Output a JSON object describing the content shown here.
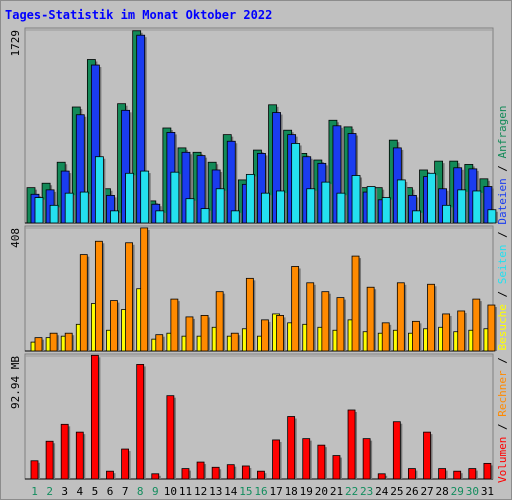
{
  "title": "Tages-Statistik im Monat Oktober 2022",
  "colors": {
    "background": "#c0c0c0",
    "weekday_label": "#000000",
    "weekend_label": "#138d5e",
    "anfragen": "#138a58",
    "dateien": "#1a3cf0",
    "seiten": "#24e0ef",
    "besuche": "#ffff00",
    "rechner": "#ff8a00",
    "volumen": "#ff0000"
  },
  "chart_data": [
    {
      "type": "bar",
      "panel": "hits",
      "y_max_label": "1729",
      "ylim": [
        0,
        1729
      ],
      "categories": [
        "1",
        "2",
        "3",
        "4",
        "5",
        "6",
        "7",
        "8",
        "9",
        "10",
        "11",
        "12",
        "13",
        "14",
        "15",
        "16",
        "17",
        "18",
        "19",
        "20",
        "21",
        "22",
        "23",
        "24",
        "25",
        "26",
        "27",
        "28",
        "29",
        "30",
        "31"
      ],
      "weekend": [
        "1",
        "2",
        "8",
        "9",
        "15",
        "16",
        "22",
        "23",
        "29",
        "30"
      ],
      "series": [
        {
          "name": "Anfragen",
          "values": [
            320,
            360,
            550,
            1050,
            1480,
            310,
            1080,
            1740,
            200,
            860,
            680,
            640,
            550,
            800,
            390,
            660,
            1070,
            840,
            630,
            570,
            930,
            870,
            320,
            320,
            750,
            320,
            480,
            560,
            560,
            530,
            400
          ]
        },
        {
          "name": "Dateien",
          "values": [
            260,
            300,
            470,
            980,
            1430,
            250,
            1020,
            1700,
            170,
            820,
            640,
            610,
            480,
            740,
            350,
            630,
            1000,
            800,
            600,
            540,
            880,
            810,
            280,
            210,
            680,
            250,
            420,
            310,
            500,
            490,
            330
          ]
        },
        {
          "name": "Seiten",
          "values": [
            230,
            160,
            270,
            280,
            600,
            110,
            450,
            470,
            110,
            460,
            220,
            130,
            310,
            110,
            440,
            270,
            290,
            720,
            310,
            370,
            270,
            430,
            330,
            230,
            390,
            110,
            450,
            160,
            300,
            290,
            120
          ]
        }
      ]
    },
    {
      "type": "bar",
      "panel": "visits",
      "y_max_label": "408",
      "ylim": [
        0,
        408
      ],
      "categories": [
        "1",
        "2",
        "3",
        "4",
        "5",
        "6",
        "7",
        "8",
        "9",
        "10",
        "11",
        "12",
        "13",
        "14",
        "15",
        "16",
        "17",
        "18",
        "19",
        "20",
        "21",
        "22",
        "23",
        "24",
        "25",
        "26",
        "27",
        "28",
        "29",
        "30",
        "31"
      ],
      "series": [
        {
          "name": "Besuche",
          "values": [
            30,
            45,
            50,
            90,
            160,
            70,
            140,
            210,
            40,
            60,
            50,
            50,
            80,
            50,
            75,
            50,
            125,
            95,
            90,
            80,
            70,
            105,
            65,
            60,
            70,
            60,
            75,
            80,
            65,
            70,
            75
          ]
        },
        {
          "name": "Rechner",
          "values": [
            45,
            60,
            60,
            325,
            370,
            170,
            365,
            415,
            55,
            175,
            115,
            120,
            200,
            60,
            245,
            105,
            120,
            285,
            230,
            200,
            180,
            320,
            215,
            95,
            230,
            100,
            225,
            125,
            135,
            175,
            155
          ]
        }
      ]
    },
    {
      "type": "bar",
      "panel": "volume",
      "y_max_label": "92.94 MB",
      "ylim": [
        0,
        92.94
      ],
      "categories": [
        "1",
        "2",
        "3",
        "4",
        "5",
        "6",
        "7",
        "8",
        "9",
        "10",
        "11",
        "12",
        "13",
        "14",
        "15",
        "16",
        "17",
        "18",
        "19",
        "20",
        "21",
        "22",
        "23",
        "24",
        "25",
        "26",
        "27",
        "28",
        "29",
        "30",
        "31"
      ],
      "series": [
        {
          "name": "Volumen",
          "values": [
            14,
            29,
            42,
            36,
            95,
            6,
            23,
            88,
            4,
            64,
            8,
            13,
            9,
            11,
            10,
            6,
            30,
            48,
            31,
            26,
            18,
            53,
            31,
            4,
            44,
            8,
            36,
            8,
            6,
            8,
            12
          ]
        }
      ]
    }
  ],
  "legend": {
    "top": [
      "Anfragen",
      "Dateien",
      "Seiten",
      "Besuche",
      "Rechner",
      "Volumen"
    ],
    "separator": " / "
  }
}
